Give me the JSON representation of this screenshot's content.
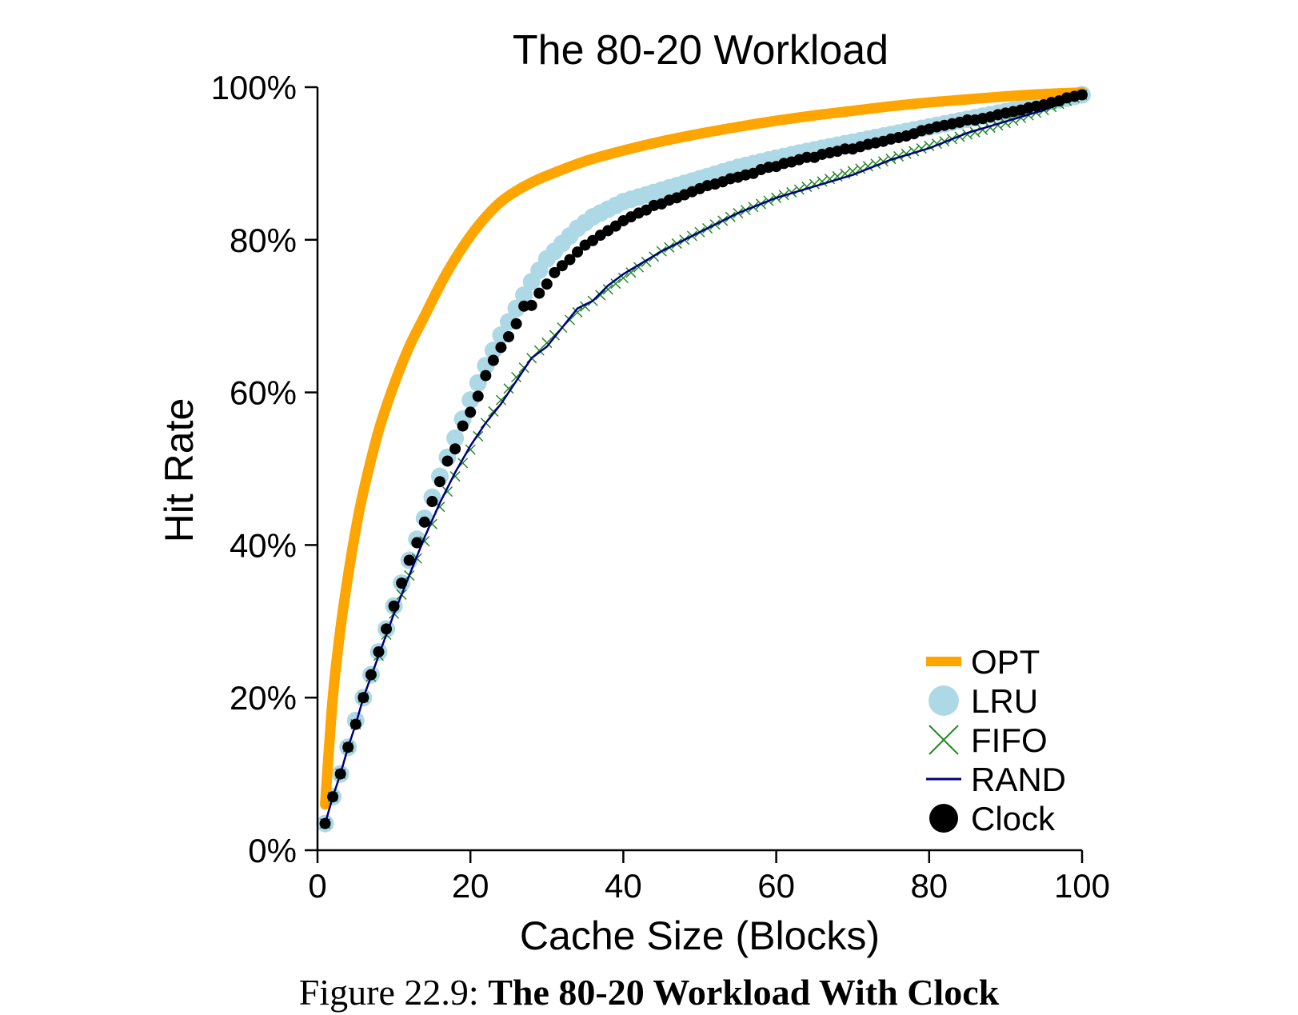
{
  "chart_data": {
    "type": "line",
    "title": "The 80-20 Workload",
    "xlabel": "Cache Size (Blocks)",
    "ylabel": "Hit Rate",
    "xlim": [
      0,
      100
    ],
    "ylim": [
      0,
      100
    ],
    "x_ticks": [
      0,
      20,
      40,
      60,
      80,
      100
    ],
    "x_tick_labels": [
      "0",
      "20",
      "40",
      "60",
      "80",
      "100"
    ],
    "y_ticks": [
      0,
      20,
      40,
      60,
      80,
      100
    ],
    "y_tick_labels": [
      "0%",
      "20%",
      "40%",
      "60%",
      "80%",
      "100%"
    ],
    "legend_position": "lower-right",
    "grid": false,
    "series": [
      {
        "name": "OPT",
        "style": "thick-line",
        "color": "#FFA500",
        "x": [
          1,
          2,
          3,
          4,
          5,
          6,
          8,
          10,
          12,
          14,
          16,
          18,
          20,
          22,
          24,
          26,
          28,
          30,
          35,
          40,
          45,
          50,
          55,
          60,
          65,
          70,
          75,
          80,
          85,
          90,
          95,
          100
        ],
        "y": [
          6,
          20,
          29,
          36,
          42,
          47,
          55,
          61,
          66,
          70,
          74,
          77.5,
          80.5,
          83,
          85,
          86.4,
          87.5,
          88.4,
          90.3,
          91.7,
          92.9,
          93.9,
          94.8,
          95.6,
          96.3,
          96.9,
          97.5,
          98,
          98.4,
          98.8,
          99.1,
          99.3
        ]
      },
      {
        "name": "LRU",
        "style": "large-dots",
        "color": "#ADD8E6",
        "x": [
          1,
          2,
          3,
          4,
          5,
          6,
          8,
          10,
          12,
          14,
          16,
          18,
          20,
          22,
          24,
          26,
          28,
          30,
          32,
          34,
          36,
          38,
          40,
          45,
          50,
          55,
          60,
          65,
          70,
          75,
          80,
          85,
          90,
          95,
          100
        ],
        "y": [
          3.5,
          7,
          10,
          13.5,
          17,
          20,
          26,
          32,
          38,
          43.5,
          49,
          54,
          59,
          63.5,
          67.5,
          71,
          74.5,
          77.5,
          79.5,
          81.5,
          83,
          84,
          85,
          86.5,
          88,
          89.5,
          90.7,
          91.8,
          92.8,
          93.8,
          94.8,
          95.8,
          96.8,
          97.9,
          99
        ]
      },
      {
        "name": "FIFO",
        "style": "x-markers",
        "color": "#228B22",
        "x": [
          1,
          2,
          3,
          4,
          5,
          6,
          8,
          10,
          12,
          14,
          16,
          18,
          20,
          22,
          24,
          26,
          28,
          30,
          32,
          34,
          36,
          38,
          40,
          45,
          50,
          55,
          60,
          65,
          70,
          75,
          80,
          85,
          90,
          95,
          100
        ],
        "y": [
          3.5,
          7,
          10,
          13.5,
          16.5,
          20,
          25.5,
          31,
          36,
          40.5,
          45,
          49,
          52.5,
          56,
          59,
          62,
          64.5,
          66.5,
          68.5,
          70.5,
          72,
          73.5,
          75,
          78.5,
          81,
          83.5,
          85.5,
          87.3,
          89,
          90.6,
          92.3,
          93.8,
          95.3,
          97,
          99
        ]
      },
      {
        "name": "RAND",
        "style": "thin-line",
        "color": "#000080",
        "x": [
          1,
          2,
          3,
          4,
          5,
          6,
          8,
          10,
          12,
          14,
          16,
          18,
          20,
          22,
          24,
          26,
          28,
          30,
          32,
          34,
          36,
          38,
          40,
          45,
          50,
          55,
          60,
          65,
          70,
          75,
          80,
          85,
          90,
          95,
          100
        ],
        "y": [
          3.5,
          7,
          10,
          13.5,
          16.5,
          20,
          25.5,
          31,
          36,
          41,
          45.5,
          49.5,
          53,
          56,
          58.5,
          61.5,
          64.5,
          66,
          68.5,
          71,
          72,
          74,
          75.5,
          78.5,
          81,
          83.5,
          85.5,
          87,
          88.5,
          90.5,
          92,
          94,
          95.5,
          97,
          99
        ]
      },
      {
        "name": "Clock",
        "style": "dots",
        "color": "#000000",
        "x": [
          1,
          2,
          3,
          4,
          5,
          6,
          7,
          8,
          9,
          10,
          11,
          12,
          13,
          14,
          15,
          16,
          17,
          18,
          19,
          20,
          21,
          22,
          23,
          24,
          25,
          26,
          27,
          28,
          29,
          30,
          31,
          32,
          33,
          34,
          35,
          36,
          37,
          38,
          39,
          40,
          41,
          42,
          43,
          44,
          45,
          46,
          47,
          48,
          49,
          50,
          51,
          52,
          53,
          54,
          55,
          56,
          57,
          58,
          59,
          60,
          61,
          62,
          63,
          64,
          65,
          66,
          67,
          68,
          69,
          70,
          71,
          72,
          73,
          74,
          75,
          76,
          77,
          78,
          79,
          80,
          81,
          82,
          83,
          84,
          85,
          86,
          87,
          88,
          89,
          90,
          91,
          92,
          93,
          94,
          95,
          96,
          97,
          98,
          99,
          100
        ],
        "y": [
          3.5,
          7,
          10,
          13.5,
          16.5,
          20,
          23,
          26,
          29,
          32,
          35,
          38,
          40.3,
          43,
          45.7,
          48.3,
          51,
          52.6,
          55.6,
          57.4,
          59.5,
          62.2,
          64.2,
          65.9,
          67.3,
          69,
          71.3,
          71.4,
          73,
          74.2,
          75.7,
          76.6,
          77.4,
          78.4,
          79.3,
          79.9,
          80.6,
          81.2,
          81.8,
          82.5,
          83,
          83.5,
          83.9,
          84.5,
          84.7,
          85.2,
          85.5,
          85.9,
          86.3,
          86.7,
          87.1,
          87.3,
          87.6,
          88,
          88.2,
          88.5,
          88.7,
          89.2,
          89.5,
          89.6,
          90,
          90.2,
          90.5,
          90.8,
          90.8,
          91.2,
          91.4,
          91.6,
          91.9,
          91.9,
          92.2,
          92.5,
          92.7,
          92.9,
          93.2,
          93.4,
          93.6,
          93.9,
          94.3,
          94.5,
          94.8,
          95,
          95.2,
          95.4,
          95.7,
          95.7,
          95.9,
          96.1,
          96.4,
          96.6,
          96.8,
          97,
          97.3,
          97.5,
          97.7,
          98,
          98.2,
          98.6,
          98.8,
          99
        ]
      }
    ]
  },
  "caption": {
    "prefix": "Figure 22.9: ",
    "title": "The 80-20 Workload With Clock"
  }
}
